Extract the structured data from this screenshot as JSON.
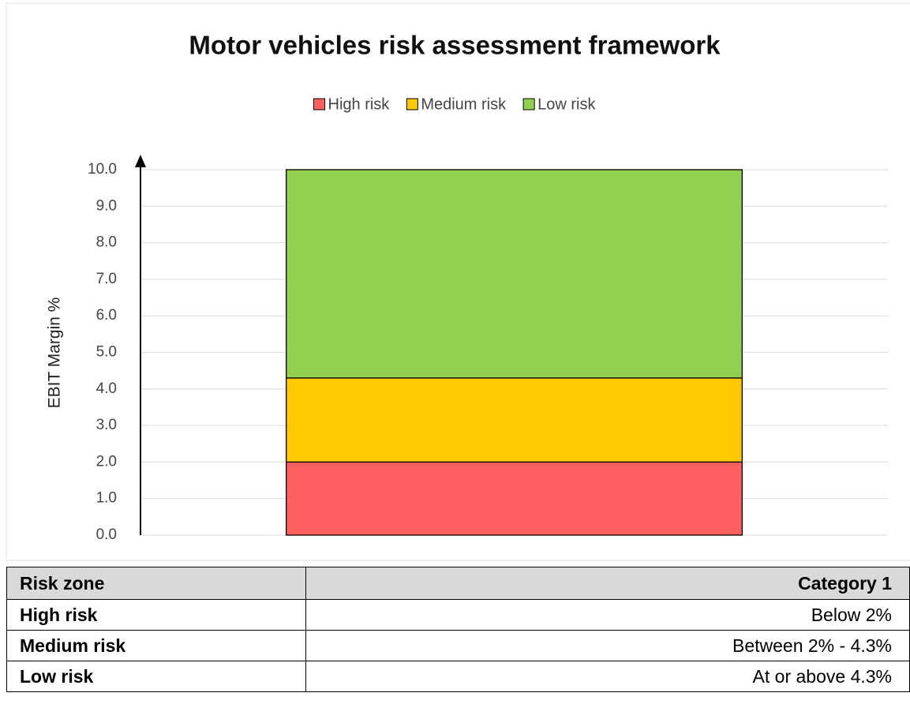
{
  "chart_data": {
    "type": "stacked_bar",
    "title": "Motor vehicles risk assessment framework",
    "ylabel": "EBIT Margin %",
    "categories": [
      null
    ],
    "series": [
      {
        "name": "High risk",
        "color": "#ff5f5f",
        "values": [
          2.0
        ]
      },
      {
        "name": "Medium risk",
        "color": "#ffc800",
        "values": [
          2.3
        ]
      },
      {
        "name": "Low risk",
        "color": "#92d050",
        "values": [
          5.7
        ]
      }
    ],
    "ylim": [
      0,
      10
    ],
    "yticks": [
      {
        "value": 0,
        "label": "0.0"
      },
      {
        "value": 1,
        "label": "1.0"
      },
      {
        "value": 2,
        "label": "2.0"
      },
      {
        "value": 3,
        "label": "3.0"
      },
      {
        "value": 4,
        "label": "4.0"
      },
      {
        "value": 5,
        "label": "5.0"
      },
      {
        "value": 6,
        "label": "6.0"
      },
      {
        "value": 7,
        "label": "7.0"
      },
      {
        "value": 8,
        "label": "8.0"
      },
      {
        "value": 9,
        "label": "9.0"
      },
      {
        "value": 10,
        "label": "10.0"
      }
    ],
    "grid": true,
    "legend": "top"
  },
  "table": {
    "header": [
      "Risk zone",
      "Category 1"
    ],
    "rows": [
      [
        "High risk",
        "Below 2%"
      ],
      [
        "Medium risk",
        "Between 2% - 4.3%"
      ],
      [
        "Low risk",
        "At or above 4.3%"
      ]
    ]
  }
}
